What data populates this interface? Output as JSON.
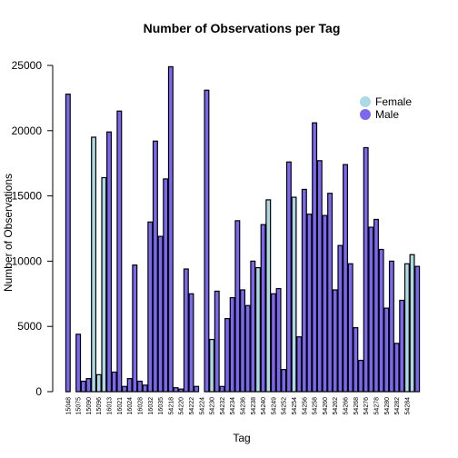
{
  "chart_data": {
    "type": "bar",
    "title": "Number of Observations per Tag",
    "xlabel": "Tag",
    "ylabel": "Number of Observations",
    "ylim": [
      0,
      25000
    ],
    "yticks": [
      0,
      5000,
      10000,
      15000,
      20000,
      25000
    ],
    "grid": false,
    "legend_position": "top-right",
    "legend": [
      {
        "name": "Female",
        "color": "#add8e6"
      },
      {
        "name": "Male",
        "color": "#7b68ee"
      }
    ],
    "x_tick_labels": [
      "15048",
      "15075",
      "15090",
      "15096",
      "16013",
      "16021",
      "16024",
      "16028",
      "16032",
      "16035",
      "54218",
      "54220",
      "54222",
      "54224",
      "54230",
      "54232",
      "54234",
      "54236",
      "54238",
      "54240",
      "54249",
      "54252",
      "54254",
      "54256",
      "54258",
      "54260",
      "54262",
      "54266",
      "54268",
      "54276",
      "54278",
      "54280",
      "54282",
      "54284"
    ],
    "bars": [
      {
        "value": 22800,
        "sex": "Male"
      },
      {
        "value": 0,
        "sex": "Male"
      },
      {
        "value": 4400,
        "sex": "Male"
      },
      {
        "value": 800,
        "sex": "Male"
      },
      {
        "value": 1000,
        "sex": "Male"
      },
      {
        "value": 19500,
        "sex": "Female"
      },
      {
        "value": 1300,
        "sex": "Female"
      },
      {
        "value": 16400,
        "sex": "Female"
      },
      {
        "value": 19900,
        "sex": "Male"
      },
      {
        "value": 1500,
        "sex": "Male"
      },
      {
        "value": 21500,
        "sex": "Male"
      },
      {
        "value": 400,
        "sex": "Male"
      },
      {
        "value": 1000,
        "sex": "Male"
      },
      {
        "value": 9700,
        "sex": "Male"
      },
      {
        "value": 800,
        "sex": "Male"
      },
      {
        "value": 500,
        "sex": "Male"
      },
      {
        "value": 13000,
        "sex": "Male"
      },
      {
        "value": 19200,
        "sex": "Male"
      },
      {
        "value": 11900,
        "sex": "Male"
      },
      {
        "value": 16300,
        "sex": "Male"
      },
      {
        "value": 24900,
        "sex": "Male"
      },
      {
        "value": 300,
        "sex": "Male"
      },
      {
        "value": 200,
        "sex": "Male"
      },
      {
        "value": 9400,
        "sex": "Male"
      },
      {
        "value": 7500,
        "sex": "Male"
      },
      {
        "value": 400,
        "sex": "Male"
      },
      {
        "value": 0,
        "sex": "Male"
      },
      {
        "value": 23100,
        "sex": "Male"
      },
      {
        "value": 4000,
        "sex": "Female"
      },
      {
        "value": 7700,
        "sex": "Male"
      },
      {
        "value": 400,
        "sex": "Male"
      },
      {
        "value": 5600,
        "sex": "Male"
      },
      {
        "value": 7200,
        "sex": "Male"
      },
      {
        "value": 13100,
        "sex": "Male"
      },
      {
        "value": 7800,
        "sex": "Male"
      },
      {
        "value": 6600,
        "sex": "Male"
      },
      {
        "value": 10000,
        "sex": "Male"
      },
      {
        "value": 9500,
        "sex": "Female"
      },
      {
        "value": 12800,
        "sex": "Male"
      },
      {
        "value": 14700,
        "sex": "Female"
      },
      {
        "value": 7500,
        "sex": "Male"
      },
      {
        "value": 7900,
        "sex": "Male"
      },
      {
        "value": 1700,
        "sex": "Male"
      },
      {
        "value": 17600,
        "sex": "Male"
      },
      {
        "value": 14900,
        "sex": "Female"
      },
      {
        "value": 4200,
        "sex": "Male"
      },
      {
        "value": 15500,
        "sex": "Male"
      },
      {
        "value": 13600,
        "sex": "Male"
      },
      {
        "value": 20600,
        "sex": "Male"
      },
      {
        "value": 17700,
        "sex": "Male"
      },
      {
        "value": 13500,
        "sex": "Male"
      },
      {
        "value": 15200,
        "sex": "Male"
      },
      {
        "value": 7800,
        "sex": "Male"
      },
      {
        "value": 11200,
        "sex": "Male"
      },
      {
        "value": 17400,
        "sex": "Male"
      },
      {
        "value": 9800,
        "sex": "Male"
      },
      {
        "value": 4900,
        "sex": "Male"
      },
      {
        "value": 2400,
        "sex": "Male"
      },
      {
        "value": 18700,
        "sex": "Male"
      },
      {
        "value": 12600,
        "sex": "Male"
      },
      {
        "value": 13200,
        "sex": "Male"
      },
      {
        "value": 10900,
        "sex": "Male"
      },
      {
        "value": 6400,
        "sex": "Male"
      },
      {
        "value": 10000,
        "sex": "Male"
      },
      {
        "value": 3700,
        "sex": "Male"
      },
      {
        "value": 7000,
        "sex": "Male"
      },
      {
        "value": 9800,
        "sex": "Female"
      },
      {
        "value": 10500,
        "sex": "Female"
      },
      {
        "value": 9600,
        "sex": "Male"
      }
    ]
  }
}
